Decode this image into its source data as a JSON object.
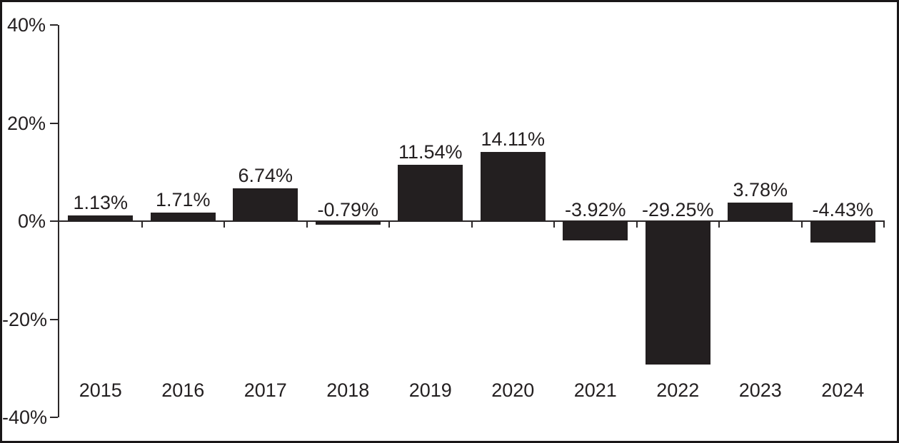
{
  "chart_data": {
    "type": "bar",
    "title": "",
    "xlabel": "",
    "ylabel": "",
    "categories": [
      "2015",
      "2016",
      "2017",
      "2018",
      "2019",
      "2020",
      "2021",
      "2022",
      "2023",
      "2024"
    ],
    "values": [
      1.13,
      1.71,
      6.74,
      -0.79,
      11.54,
      14.11,
      -3.92,
      -29.25,
      3.78,
      -4.43
    ],
    "value_labels": [
      "1.13%",
      "1.71%",
      "6.74%",
      "-0.79%",
      "11.54%",
      "14.11%",
      "-3.92%",
      "-29.25%",
      "3.78%",
      "-4.43%"
    ],
    "y_ticks": [
      40,
      20,
      0,
      -20,
      -40
    ],
    "y_tick_labels": [
      "40%",
      "20%",
      "0%",
      "-20%",
      "-40%"
    ],
    "ylim": [
      -40,
      40
    ],
    "grid": false,
    "legend": null,
    "negative_labels_above_zero_line": true,
    "colors": {
      "bar": "#231f20",
      "text": "#231f20",
      "axis": "#2b2728",
      "background": "#ffffff",
      "frame_border": "#1a1718"
    }
  }
}
